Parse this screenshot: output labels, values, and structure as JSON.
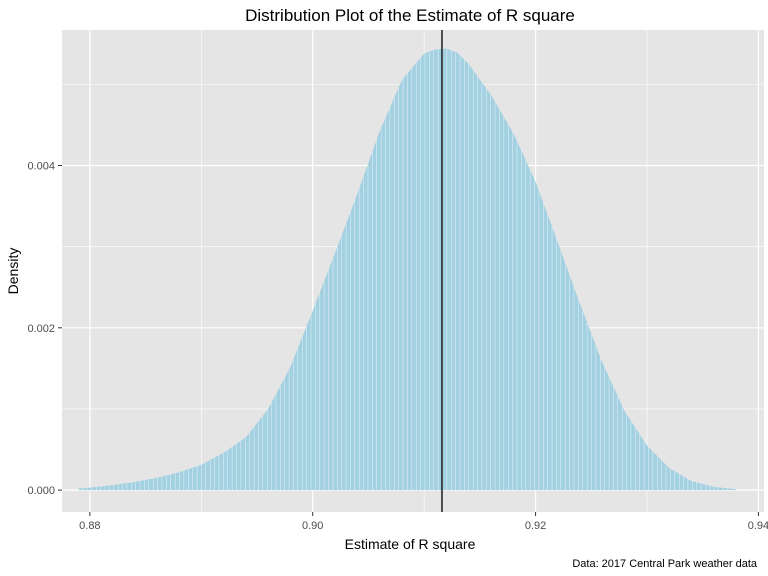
{
  "chart_data": {
    "type": "area",
    "title": "Distribution Plot of the Estimate of R square",
    "xlabel": "Estimate of R square",
    "ylabel": "Density",
    "caption": "Data: 2017 Central Park weather data",
    "xlim": [
      0.8775,
      0.9405
    ],
    "ylim": [
      -0.00027,
      0.00567
    ],
    "x_ticks": [
      0.88,
      0.9,
      0.92,
      0.94
    ],
    "x_tick_labels": [
      "0.88",
      "0.90",
      "0.92",
      "0.94"
    ],
    "y_ticks": [
      0.0,
      0.002,
      0.004
    ],
    "y_tick_labels": [
      "0.000",
      "0.002",
      "0.004"
    ],
    "grid": true,
    "vline": {
      "x": 0.9116,
      "color": "#000000"
    },
    "fill_color": "#a3d1e1",
    "panel_background": "#e5e5e5",
    "grid_color": "#ffffff",
    "series": [
      {
        "name": "density",
        "x": [
          0.879,
          0.88,
          0.882,
          0.884,
          0.886,
          0.888,
          0.89,
          0.892,
          0.894,
          0.896,
          0.898,
          0.9,
          0.902,
          0.904,
          0.906,
          0.908,
          0.91,
          0.911,
          0.912,
          0.913,
          0.914,
          0.916,
          0.918,
          0.92,
          0.922,
          0.924,
          0.926,
          0.928,
          0.93,
          0.932,
          0.934,
          0.936,
          0.938
        ],
        "y": [
          2e-05,
          3e-05,
          6e-05,
          0.0001,
          0.00015,
          0.00022,
          0.00031,
          0.00046,
          0.00065,
          0.001,
          0.00152,
          0.00221,
          0.00292,
          0.00365,
          0.00442,
          0.00505,
          0.00538,
          0.00543,
          0.00544,
          0.00539,
          0.00525,
          0.00487,
          0.0044,
          0.0038,
          0.00305,
          0.00229,
          0.00157,
          0.00097,
          0.00055,
          0.00027,
          0.00011,
          4e-05,
          1e-05
        ]
      }
    ]
  }
}
